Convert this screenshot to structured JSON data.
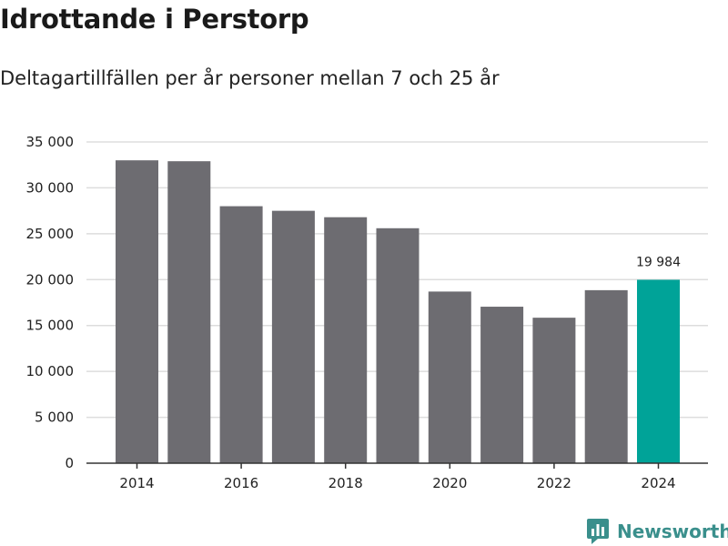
{
  "title": "Idrottande i Perstorp",
  "subtitle": "Deltagartillfällen per år personer mellan 7 och 25 år",
  "brand": "Newsworthy",
  "colors": {
    "bar": "#6d6c71",
    "highlight": "#00a398",
    "grid": "#dddddd",
    "axis": "#333333",
    "brand": "#3a8f8c"
  },
  "chart_data": {
    "type": "bar",
    "title": "Idrottande i Perstorp",
    "subtitle": "Deltagartillfällen per år personer mellan 7 och 25 år",
    "xlabel": "",
    "ylabel": "",
    "categories": [
      2014,
      2015,
      2016,
      2017,
      2018,
      2019,
      2020,
      2021,
      2022,
      2023,
      2024
    ],
    "values": [
      33000,
      32900,
      28000,
      27500,
      26800,
      25600,
      18700,
      17050,
      15850,
      18850,
      19984
    ],
    "highlight_index": 10,
    "data_labels": [
      {
        "index": 10,
        "text": "19 984"
      }
    ],
    "xticks": [
      2014,
      2016,
      2018,
      2020,
      2022,
      2024
    ],
    "xtick_labels": [
      "2014",
      "2016",
      "2018",
      "2020",
      "2022",
      "2024"
    ],
    "yticks": [
      0,
      5000,
      10000,
      15000,
      20000,
      25000,
      30000,
      35000
    ],
    "ytick_labels": [
      "0",
      "5 000",
      "10 000",
      "15 000",
      "20 000",
      "25 000",
      "30 000",
      "35 000"
    ],
    "ylim": [
      0,
      35000
    ],
    "grid": true,
    "legend": "none"
  }
}
